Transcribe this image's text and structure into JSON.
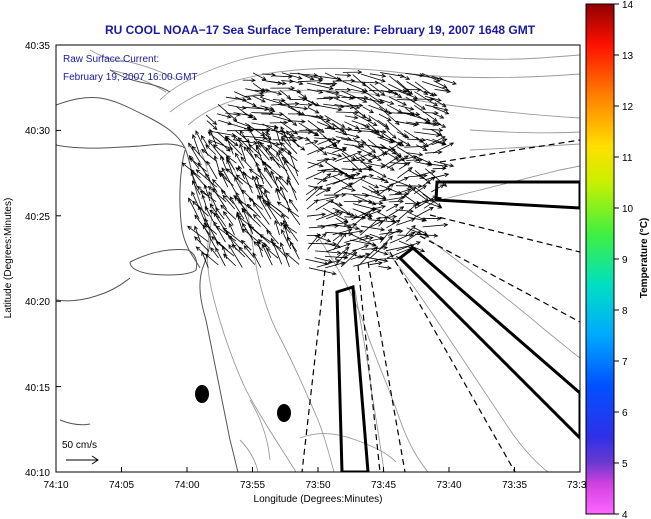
{
  "title": "RU COOL  NOAA−17  Sea Surface Temperature:  February 19, 2007 1648 GMT",
  "inset": {
    "line1": "Raw Surface Current:",
    "line2": "February 19, 2007 16:00 GMT"
  },
  "scale": {
    "label": "50 cm/s"
  },
  "axes": {
    "xlabel": "Longitude (Degrees:Minutes)",
    "ylabel": "Latitude (Degrees:Minutes)",
    "xticks": [
      "74:10",
      "74:05",
      "74:00",
      "73:55",
      "73:50",
      "73:45",
      "73:40",
      "73:35",
      "73:3"
    ],
    "yticks": [
      "40:35",
      "40:30",
      "40:25",
      "40:20",
      "40:15",
      "40:10"
    ]
  },
  "colorbar": {
    "label": "Temperature (°C)",
    "ticks": [
      "14",
      "13",
      "12",
      "11",
      "10",
      "9",
      "8",
      "7",
      "6",
      "5",
      "4"
    ]
  }
}
